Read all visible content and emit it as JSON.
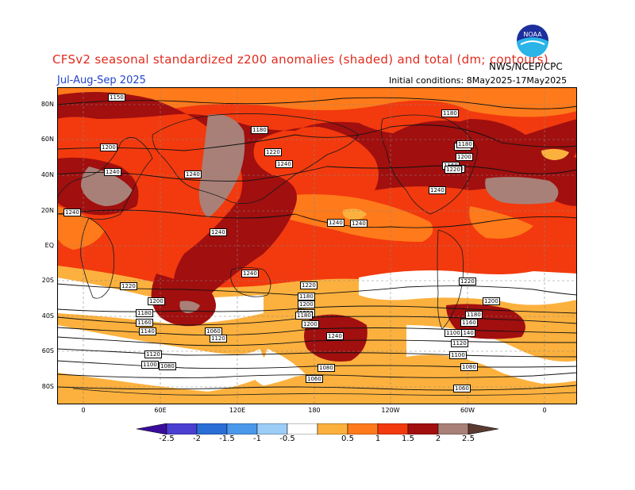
{
  "header": {
    "title": "CFSv2 seasonal standardized z200 anomalies (shaded) and total (dm; contours)",
    "period": "Jul-Aug-Sep 2025",
    "initial_conditions": "Initial conditions: 8May2025-17May2025",
    "agency": "NWS/NCEP/CPC",
    "logo_text": "NOAA"
  },
  "map": {
    "lat_labels": [
      "80N",
      "60N",
      "40N",
      "20N",
      "EQ",
      "20S",
      "40S",
      "60S",
      "80S"
    ],
    "lon_labels": [
      "0",
      "60E",
      "120E",
      "180",
      "120W",
      "60W",
      "0"
    ],
    "contour_labels": [
      "1150",
      "1180",
      "1200",
      "1220",
      "1240",
      "1240",
      "1240",
      "1240",
      "1240",
      "1240",
      "1240",
      "1240",
      "1220",
      "1200",
      "1180",
      "1160",
      "1140",
      "1120",
      "1100",
      "1080",
      "1060",
      "1180",
      "1200",
      "1220",
      "1180",
      "1200",
      "1220",
      "1240",
      "1220",
      "1200",
      "1180",
      "1160",
      "1140",
      "1120",
      "1100",
      "1080",
      "1060",
      "1200",
      "1180",
      "1160",
      "1140",
      "1120",
      "1100",
      "1080",
      "1060",
      "1180",
      "1200",
      "1220",
      "1240"
    ]
  },
  "colorbar": {
    "tick_labels": [
      "-2.5",
      "-2",
      "-1.5",
      "-1",
      "-0.5",
      "0.5",
      "1",
      "1.5",
      "2",
      "2.5"
    ],
    "colors": [
      "#3a0c9c",
      "#4a3fd0",
      "#2a6ed6",
      "#4a98ea",
      "#9ccdf6",
      "#ffffff",
      "#fcb13e",
      "#ff7a1a",
      "#f23a0e",
      "#a10f0f",
      "#a88078",
      "#5a3a30"
    ]
  }
}
